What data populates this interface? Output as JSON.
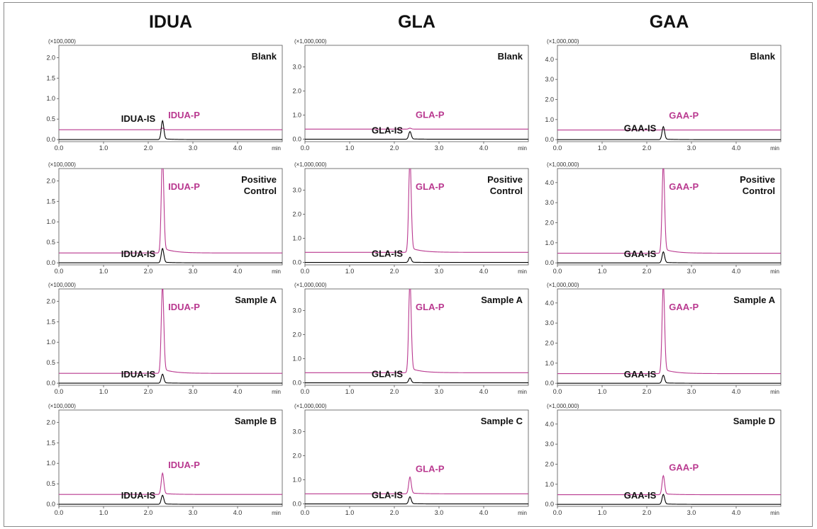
{
  "colors": {
    "product": "#b9388f",
    "internal_standard": "#000000"
  },
  "chart_data": {
    "type": "line",
    "x_unit": "min",
    "x_ticks": [
      "0.0",
      "1.0",
      "2.0",
      "3.0",
      "4.0"
    ],
    "xlim": [
      0,
      5.0
    ],
    "columns": [
      {
        "title": "IDUA",
        "multiplier": "(×100,000)",
        "y_ticks": [
          "0.0",
          "0.5",
          "1.0",
          "1.5",
          "2.0"
        ],
        "ylim": [
          -0.05,
          2.3
        ],
        "is_label": "IDUA-IS",
        "p_label": "IDUA-P",
        "rt": 2.32,
        "baseline": 0.24
      },
      {
        "title": "GLA",
        "multiplier": "(×1,000,000)",
        "y_ticks": [
          "0.0",
          "1.0",
          "2.0",
          "3.0"
        ],
        "ylim": [
          -0.1,
          3.9
        ],
        "is_label": "GLA-IS",
        "p_label": "GLA-P",
        "rt": 2.35,
        "baseline": 0.42
      },
      {
        "title": "GAA",
        "multiplier": "(×1,000,000)",
        "y_ticks": [
          "0.0",
          "1.0",
          "2.0",
          "3.0",
          "4.0"
        ],
        "ylim": [
          -0.1,
          4.7
        ],
        "is_label": "GAA-IS",
        "p_label": "GAA-P",
        "rt": 2.37,
        "baseline": 0.48
      }
    ],
    "rows": [
      {
        "conditions": [
          "Blank",
          "Blank",
          "Blank"
        ]
      },
      {
        "conditions": [
          "Positive\nControl",
          "Positive\nControl",
          "Positive\nControl"
        ]
      },
      {
        "conditions": [
          "Sample A",
          "Sample A",
          "Sample A"
        ]
      },
      {
        "conditions": [
          "Sample B",
          "Sample C",
          "Sample D"
        ]
      }
    ],
    "panels": [
      [
        {
          "is_peak": 0.46,
          "p_peak": 0.04
        },
        {
          "is_peak": 0.32,
          "p_peak": 0.04
        },
        {
          "is_peak": 0.65,
          "p_peak": 0.02
        }
      ],
      [
        {
          "is_peak": 0.35,
          "p_peak": 2.4
        },
        {
          "is_peak": 0.22,
          "p_peak": 3.9
        },
        {
          "is_peak": 0.55,
          "p_peak": 4.45
        }
      ],
      [
        {
          "is_peak": 0.22,
          "p_peak": 2.15
        },
        {
          "is_peak": 0.2,
          "p_peak": 3.82
        },
        {
          "is_peak": 0.4,
          "p_peak": 4.45
        }
      ],
      [
        {
          "is_peak": 0.22,
          "p_peak": 0.52
        },
        {
          "is_peak": 0.3,
          "p_peak": 0.7
        },
        {
          "is_peak": 0.5,
          "p_peak": 0.95
        }
      ]
    ]
  }
}
